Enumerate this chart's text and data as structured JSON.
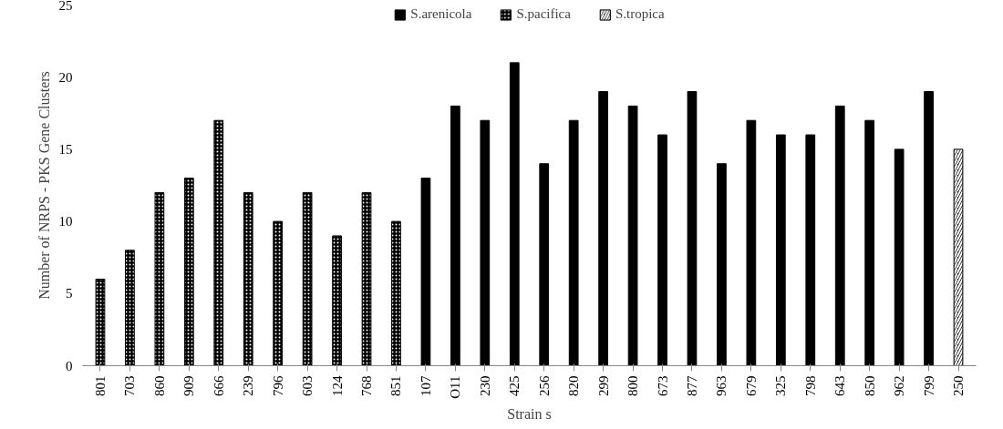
{
  "chart_data": {
    "type": "bar",
    "xlabel": "Strain s",
    "ylabel": "Number of NRPS - PKS Gene Clusters",
    "categories": [
      "801",
      "703",
      "860",
      "909",
      "666",
      "239",
      "796",
      "603",
      "124",
      "768",
      "851",
      "107",
      "O11",
      "230",
      "425",
      "256",
      "820",
      "299",
      "800",
      "673",
      "877",
      "963",
      "679",
      "325",
      "798",
      "643",
      "850",
      "962",
      "799",
      "250"
    ],
    "series": [
      {
        "name": "S.arenicola",
        "color": "#000000",
        "values": [
          null,
          null,
          null,
          null,
          null,
          null,
          null,
          null,
          null,
          null,
          null,
          13,
          18,
          17,
          21,
          14,
          17,
          19,
          18,
          16,
          19,
          14,
          17,
          16,
          16,
          18,
          17,
          15,
          19,
          null
        ]
      },
      {
        "name": "S.pacifica",
        "color": "#000000",
        "values": [
          6,
          8,
          12,
          13,
          17,
          12,
          10,
          12,
          9,
          12,
          10,
          null,
          null,
          null,
          null,
          null,
          null,
          null,
          null,
          null,
          null,
          null,
          null,
          null,
          null,
          null,
          null,
          null,
          null,
          null
        ]
      },
      {
        "name": "S.tropica",
        "color": "#000000",
        "values": [
          null,
          null,
          null,
          null,
          null,
          null,
          null,
          null,
          null,
          null,
          null,
          null,
          null,
          null,
          null,
          null,
          null,
          null,
          null,
          null,
          null,
          null,
          null,
          null,
          null,
          null,
          null,
          null,
          null,
          15
        ]
      }
    ],
    "ylim": [
      0,
      25
    ],
    "yticks": [
      0,
      5,
      10,
      15,
      20,
      25
    ],
    "grid": false,
    "legend": "top"
  }
}
